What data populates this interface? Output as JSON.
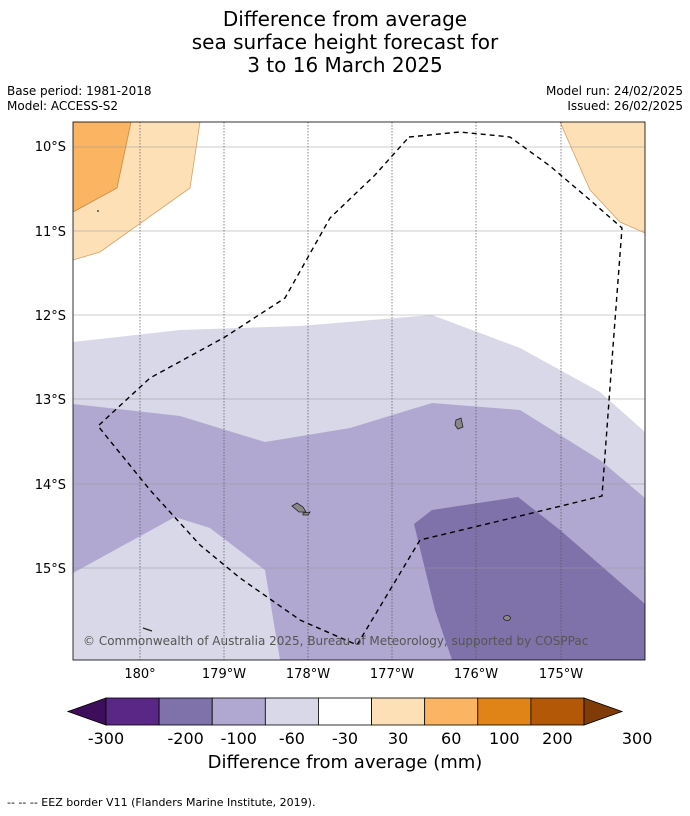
{
  "title": {
    "line1": "Difference from average",
    "line2": "sea surface height forecast for",
    "line3": "3 to 16 March 2025"
  },
  "meta": {
    "base_period": "Base period: 1981-2018",
    "model": "Model: ACCESS-S2",
    "model_run": "Model run: 24/02/2025",
    "issued": "Issued: 26/02/2025"
  },
  "map": {
    "lat_labels": [
      "10°S",
      "11°S",
      "12°S",
      "13°S",
      "14°S",
      "15°S"
    ],
    "lon_labels": [
      "180°",
      "179°W",
      "178°W",
      "177°W",
      "176°W",
      "175°W"
    ],
    "copyright": "© Commonwealth of Australia 2025, Bureau of Meteorology, supported by COSPPac"
  },
  "colorbar": {
    "tick_labels": [
      "-300",
      "-200",
      "-100",
      "-60",
      "-30",
      "30",
      "60",
      "100",
      "200",
      "300"
    ],
    "colors": [
      "#3f0e5a",
      "#5a2786",
      "#7f71aa",
      "#b0a8d0",
      "#d8d8e8",
      "#ffffff",
      "#fde0b6",
      "#fbb562",
      "#e18417",
      "#b35806",
      "#7f3b08"
    ],
    "label": "Difference from average (mm)"
  },
  "footer": {
    "eez_note": "--  --  -- EEZ border V11 (Flanders Marine Institute, 2019)."
  }
}
